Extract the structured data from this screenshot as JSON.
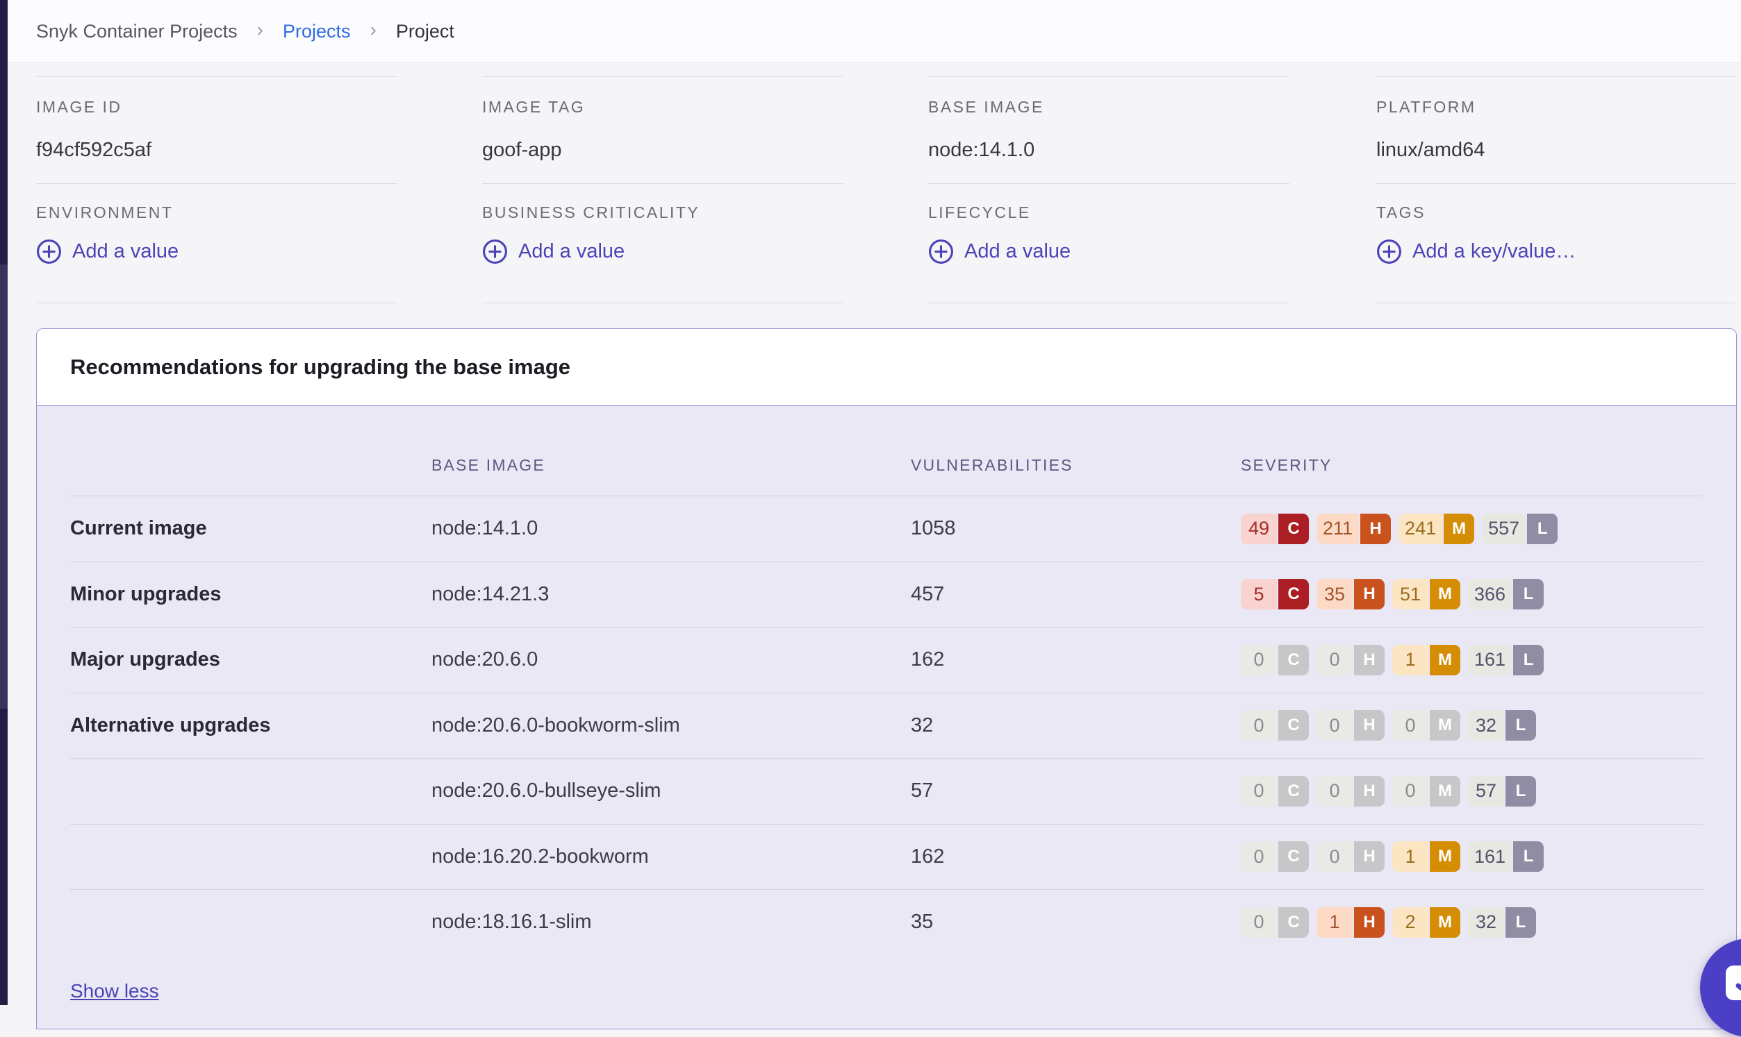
{
  "breadcrumb": {
    "separator": "›",
    "items": [
      {
        "label": "Snyk Container Projects"
      },
      {
        "label": "Projects"
      },
      {
        "label": "Project"
      }
    ]
  },
  "meta": {
    "row1": [
      {
        "label": "IMAGE ID",
        "value": "f94cf592c5af"
      },
      {
        "label": "IMAGE TAG",
        "value": "goof-app"
      },
      {
        "label": "BASE IMAGE",
        "value": "node:14.1.0"
      },
      {
        "label": "PLATFORM",
        "value": "linux/amd64"
      }
    ],
    "row2": [
      {
        "label": "ENVIRONMENT",
        "action": "Add a value"
      },
      {
        "label": "BUSINESS CRITICALITY",
        "action": "Add a value"
      },
      {
        "label": "LIFECYCLE",
        "action": "Add a value"
      },
      {
        "label": "TAGS",
        "action": "Add a key/value…"
      }
    ]
  },
  "recommendations": {
    "title": "Recommendations for upgrading the base image",
    "columns": {
      "base_image": "BASE IMAGE",
      "vulnerabilities": "VULNERABILITIES",
      "severity": "SEVERITY"
    },
    "severity_letters": {
      "critical": "C",
      "high": "H",
      "medium": "M",
      "low": "L"
    },
    "rows": [
      {
        "group": "Current image",
        "base_image": "node:14.1.0",
        "vulnerabilities": "1058",
        "severity": {
          "critical": 49,
          "high": 211,
          "medium": 241,
          "low": 557
        }
      },
      {
        "group": "Minor upgrades",
        "base_image": "node:14.21.3",
        "vulnerabilities": "457",
        "severity": {
          "critical": 5,
          "high": 35,
          "medium": 51,
          "low": 366
        }
      },
      {
        "group": "Major upgrades",
        "base_image": "node:20.6.0",
        "vulnerabilities": "162",
        "severity": {
          "critical": 0,
          "high": 0,
          "medium": 1,
          "low": 161
        }
      },
      {
        "group": "Alternative upgrades",
        "base_image": "node:20.6.0-bookworm-slim",
        "vulnerabilities": "32",
        "severity": {
          "critical": 0,
          "high": 0,
          "medium": 0,
          "low": 32
        }
      },
      {
        "group": "",
        "base_image": "node:20.6.0-bullseye-slim",
        "vulnerabilities": "57",
        "severity": {
          "critical": 0,
          "high": 0,
          "medium": 0,
          "low": 57
        }
      },
      {
        "group": "",
        "base_image": "node:16.20.2-bookworm",
        "vulnerabilities": "162",
        "severity": {
          "critical": 0,
          "high": 0,
          "medium": 1,
          "low": 161
        }
      },
      {
        "group": "",
        "base_image": "node:18.16.1-slim",
        "vulnerabilities": "35",
        "severity": {
          "critical": 0,
          "high": 1,
          "medium": 2,
          "low": 32
        }
      }
    ],
    "show_less": "Show less"
  },
  "icons": {
    "breadcrumb_separator": "chevron-right",
    "add_value": "plus-circle",
    "chat": "chat-bubble-smile"
  },
  "colors": {
    "accent_purple": "#4c43b6",
    "link_blue": "#2d6ae3",
    "card_border": "#9a93d3",
    "card_body_bg": "#eae8f4",
    "severity": {
      "critical": "#ab1e23",
      "high": "#ca521f",
      "medium": "#d48d04",
      "low": "#908ca4",
      "zero": "#c7c6c8"
    },
    "chat_bubble": "#4b3fc6",
    "sidebar_sliver": "#211e44"
  }
}
